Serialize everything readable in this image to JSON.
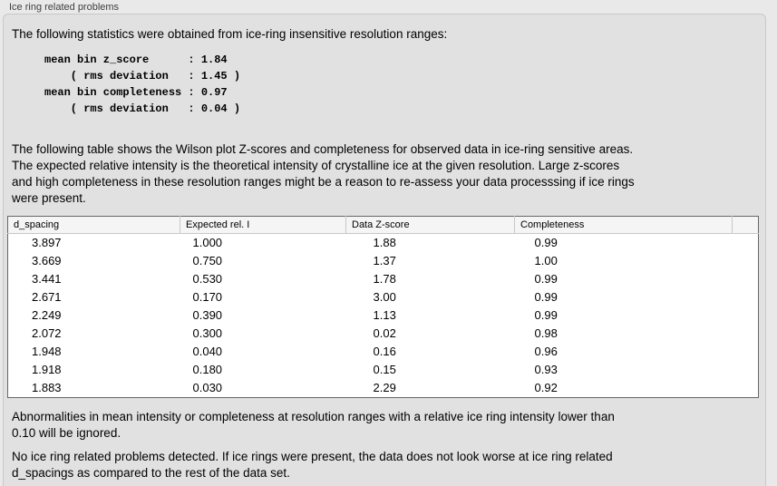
{
  "panel": {
    "title": "Ice ring related problems",
    "intro": "The following statistics were obtained from ice-ring insensitive resolution ranges:",
    "stats_block": "mean bin z_score      : 1.84\n    ( rms deviation   : 1.45 )\nmean bin completeness : 0.97\n    ( rms deviation   : 0.04 )",
    "stats_values": {
      "mean_bin_z_score": "1.84",
      "z_score_rms_deviation": "1.45",
      "mean_bin_completeness": "0.97",
      "completeness_rms_deviation": "0.04"
    },
    "table_intro": "The following table shows the Wilson plot Z-scores and completeness for observed data in ice-ring sensitive areas.\nThe expected relative intensity is the theoretical intensity of crystalline ice at the given resolution. Large z-scores\nand high completeness in these resolution ranges might be a reason to re-assess your data processsing if ice rings\nwere present.",
    "note_ignore": "Abnormalities in mean intensity or completeness at resolution ranges with a relative ice ring intensity lower than\n0.10 will be ignored.",
    "conclusion": "No ice ring related problems detected. If ice rings were present, the data does not look worse at ice ring related\nd_spacings as compared to the rest of the data set."
  },
  "table": {
    "columns": [
      "d_spacing",
      "Expected rel. I",
      "Data Z-score",
      "Completeness"
    ],
    "rows": [
      [
        "3.897",
        "1.000",
        "1.88",
        "0.99"
      ],
      [
        "3.669",
        "0.750",
        "1.37",
        "1.00"
      ],
      [
        "3.441",
        "0.530",
        "1.78",
        "0.99"
      ],
      [
        "2.671",
        "0.170",
        "3.00",
        "0.99"
      ],
      [
        "2.249",
        "0.390",
        "1.13",
        "0.99"
      ],
      [
        "2.072",
        "0.300",
        "0.02",
        "0.98"
      ],
      [
        "1.948",
        "0.040",
        "0.16",
        "0.96"
      ],
      [
        "1.918",
        "0.180",
        "0.15",
        "0.93"
      ],
      [
        "1.883",
        "0.030",
        "2.29",
        "0.92"
      ]
    ]
  },
  "colors": {
    "outer_background": "#e9e9e9",
    "panel_background": "#e1e1e1",
    "panel_border": "#c8c8c8",
    "table_background": "#ffffff",
    "table_border": "#686868",
    "table_header_background": "#f5f5f5",
    "text": "#000000",
    "title_text": "#3e3e3e"
  }
}
